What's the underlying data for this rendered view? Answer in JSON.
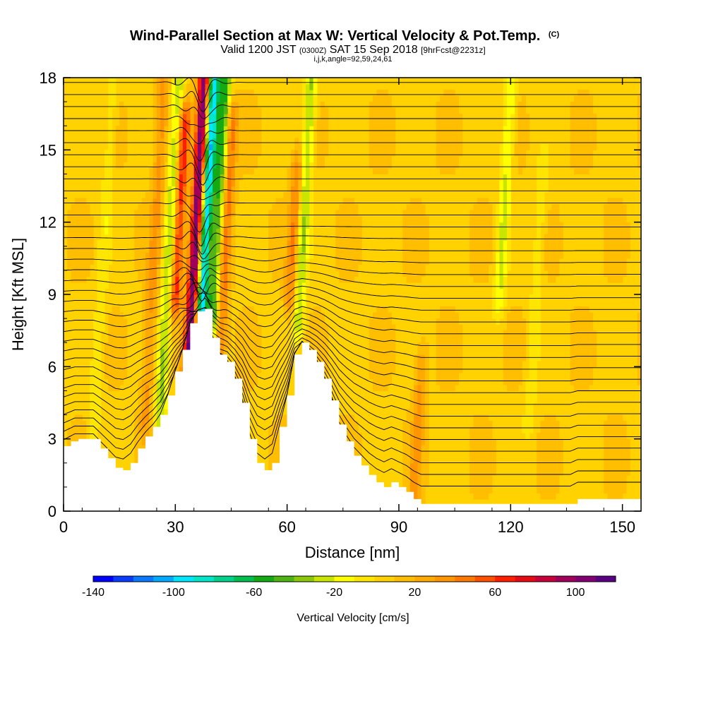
{
  "chart_data": {
    "type": "heatmap",
    "title": "Wind-Parallel Section at Max W: Vertical Velocity & Pot.Temp.",
    "title_suffix": "(C)",
    "subtitle_parts": {
      "valid": "Valid 1200 JST",
      "utc": "(0300Z)",
      "date": "SAT 15 Sep 2018",
      "fcst": "[9hrFcst@2231z]"
    },
    "subtitle2": "i,j,k,angle=92,59,24,61",
    "xlabel": "Distance [nm]",
    "ylabel": "Height [Kft MSL]",
    "xlim": [
      0,
      155
    ],
    "ylim": [
      0,
      18
    ],
    "x_ticks": [
      0,
      30,
      60,
      90,
      120,
      150
    ],
    "y_ticks": [
      0,
      3,
      6,
      9,
      12,
      15,
      18
    ],
    "colorbar": {
      "label": "Vertical Velocity [cm/s]",
      "range": [
        -140,
        120
      ],
      "step": 10,
      "tick_values": [
        -140,
        -100,
        -60,
        -20,
        20,
        60,
        100
      ],
      "colors": [
        "#0000ff",
        "#0a3cff",
        "#0a78ff",
        "#00aaff",
        "#00e6ff",
        "#00e6c8",
        "#00d28c",
        "#00be50",
        "#14aa14",
        "#50b414",
        "#8cc80a",
        "#c8e600",
        "#ffff00",
        "#ffe600",
        "#ffd200",
        "#ffbe00",
        "#ffaa00",
        "#ff9600",
        "#ff7800",
        "#ff5000",
        "#ff1e00",
        "#e60a14",
        "#c8003c",
        "#a0005a",
        "#820073",
        "#5a0082"
      ]
    },
    "terrain_profile": {
      "x": [
        0,
        3,
        5,
        8,
        10,
        12,
        14,
        16,
        18,
        20,
        22,
        24,
        26,
        28,
        30,
        32,
        34,
        36,
        38,
        40,
        42,
        44,
        46,
        48,
        50,
        52,
        54,
        56,
        58,
        60,
        62,
        64,
        66,
        68,
        70,
        72,
        74,
        76,
        78,
        80,
        82,
        84,
        86,
        88,
        90,
        92,
        94,
        96,
        100,
        110,
        120,
        130,
        134,
        136,
        138,
        140,
        150,
        155
      ],
      "y": [
        2.7,
        3.0,
        3.0,
        3.0,
        2.6,
        2.2,
        1.8,
        1.7,
        2.0,
        2.6,
        3.1,
        3.5,
        4.0,
        4.8,
        5.8,
        6.7,
        7.8,
        8.3,
        8.4,
        7.2,
        6.5,
        6.2,
        5.5,
        4.5,
        3.0,
        2.0,
        1.7,
        2.0,
        3.5,
        4.8,
        6.5,
        7.0,
        6.7,
        6.2,
        5.5,
        4.6,
        3.6,
        2.9,
        2.3,
        1.9,
        1.5,
        1.2,
        1.0,
        1.2,
        1.0,
        0.8,
        0.5,
        0.3,
        0.3,
        0.3,
        0.3,
        0.3,
        0.3,
        0.3,
        0.5,
        0.5,
        0.5,
        0.5
      ]
    },
    "w_features": [
      {
        "x": 33.5,
        "z_min": 5.5,
        "z_max": 18,
        "w": 110
      },
      {
        "x": 37,
        "z_min": 8.5,
        "z_max": 18,
        "w": -110
      },
      {
        "x": 30,
        "z_min": 9,
        "z_max": 16,
        "w": 60
      },
      {
        "x": 26,
        "z_min": 4,
        "z_max": 18,
        "w": -40
      },
      {
        "x": 40,
        "z_min": 8,
        "z_max": 18,
        "w": -60
      },
      {
        "x": 42,
        "z_min": 7,
        "z_max": 16,
        "w": 40
      },
      {
        "x": 63,
        "z_min": 8,
        "z_max": 18,
        "w": -40
      },
      {
        "x": 61,
        "z_min": 9,
        "z_max": 14,
        "w": 35
      },
      {
        "x": 117,
        "z_min": 9,
        "z_max": 18,
        "w": -30
      },
      {
        "x": 125,
        "z_min": 4,
        "z_max": 14,
        "w": -15
      },
      {
        "x": 94,
        "z_min": 0.5,
        "z_max": 6,
        "w": 25
      },
      {
        "x": 8,
        "z_min": 3,
        "z_max": 18,
        "w": -15
      },
      {
        "x": 22,
        "z_min": 4,
        "z_max": 18,
        "w": 25
      }
    ],
    "theta_contours": {
      "base_heights": [
        0.8,
        1.3,
        1.8,
        2.3,
        2.8,
        3.3,
        3.8,
        4.3,
        4.8,
        5.3,
        5.8,
        6.3,
        6.8,
        7.3,
        7.8,
        8.3,
        8.8,
        9.3,
        9.8,
        10.3,
        10.8,
        11.3,
        11.8,
        12.3,
        12.8,
        13.3,
        13.8,
        14.3,
        14.8,
        15.3,
        15.8,
        16.3,
        16.8,
        17.3,
        17.8
      ]
    },
    "grid": false,
    "legend": "bottom"
  }
}
